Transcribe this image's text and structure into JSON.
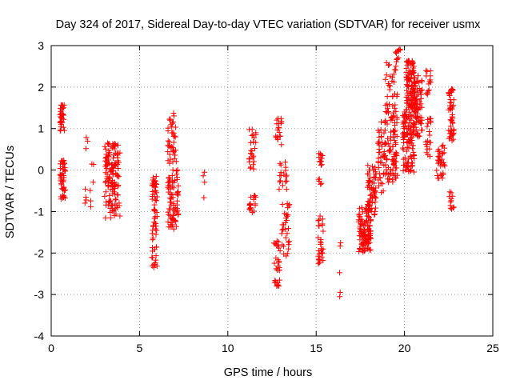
{
  "chart_data": {
    "type": "scatter",
    "title": "Day 324 of 2017, Sidereal Day-to-day VTEC variation (SDTVAR) for receiver usmx",
    "xlabel": "GPS time / hours",
    "ylabel": "SDTVAR / TECUs",
    "xlim": [
      0,
      25
    ],
    "ylim": [
      -4,
      3
    ],
    "xticks": [
      "0",
      "5",
      "10",
      "15",
      "20",
      "25"
    ],
    "yticks": [
      "-4",
      "-3",
      "-2",
      "-1",
      "0",
      "1",
      "2",
      "3"
    ],
    "grid": true,
    "marker": "+",
    "color": "#ff0000",
    "series": [
      {
        "name": "SDTVAR",
        "clusters": [
          {
            "x": [
              0.5,
              0.75
            ],
            "y": [
              0.9,
              1.6
            ],
            "n": 30
          },
          {
            "x": [
              0.5,
              0.8
            ],
            "y": [
              -0.7,
              0.25
            ],
            "n": 45
          },
          {
            "x": [
              1.9,
              2.1
            ],
            "y": [
              0.3,
              0.85
            ],
            "n": 3
          },
          {
            "x": [
              1.9,
              2.1
            ],
            "y": [
              -0.8,
              -0.4
            ],
            "n": 4
          },
          {
            "x": [
              2.2,
              2.4
            ],
            "y": [
              -0.9,
              0.2
            ],
            "n": 6
          },
          {
            "x": [
              3.0,
              3.9
            ],
            "y": [
              -0.4,
              0.65
            ],
            "n": 90
          },
          {
            "x": [
              3.0,
              3.9
            ],
            "y": [
              -1.2,
              -0.3
            ],
            "n": 45
          },
          {
            "x": [
              5.7,
              6.0
            ],
            "y": [
              -2.35,
              -0.1
            ],
            "n": 65
          },
          {
            "x": [
              6.6,
              7.1
            ],
            "y": [
              0.1,
              1.45
            ],
            "n": 40
          },
          {
            "x": [
              6.6,
              7.2
            ],
            "y": [
              -1.45,
              0.0
            ],
            "n": 80
          },
          {
            "x": [
              8.6,
              8.7
            ],
            "y": [
              -0.75,
              0.0
            ],
            "n": 4
          },
          {
            "x": [
              11.2,
              11.6
            ],
            "y": [
              0.0,
              1.1
            ],
            "n": 25
          },
          {
            "x": [
              11.2,
              11.6
            ],
            "y": [
              -1.05,
              -0.6
            ],
            "n": 18
          },
          {
            "x": [
              12.6,
              13.0
            ],
            "y": [
              -2.8,
              -1.7
            ],
            "n": 30
          },
          {
            "x": [
              12.7,
              13.1
            ],
            "y": [
              0.6,
              1.25
            ],
            "n": 20
          },
          {
            "x": [
              12.9,
              13.4
            ],
            "y": [
              -0.5,
              0.3
            ],
            "n": 18
          },
          {
            "x": [
              13.0,
              13.5
            ],
            "y": [
              -2.1,
              -0.8
            ],
            "n": 30
          },
          {
            "x": [
              15.1,
              15.4
            ],
            "y": [
              0.1,
              0.45
            ],
            "n": 12
          },
          {
            "x": [
              15.1,
              15.4
            ],
            "y": [
              -2.3,
              -1.1
            ],
            "n": 30
          },
          {
            "x": [
              15.1,
              15.3
            ],
            "y": [
              -0.5,
              -0.2
            ],
            "n": 5
          },
          {
            "x": [
              16.3,
              16.4
            ],
            "y": [
              -3.35,
              -1.2
            ],
            "n": 5
          },
          {
            "x": [
              17.4,
              18.1
            ],
            "y": [
              -2.0,
              -0.9
            ],
            "n": 110
          },
          {
            "x": [
              17.9,
              18.4
            ],
            "y": [
              -1.1,
              0.15
            ],
            "n": 70
          },
          {
            "x": [
              18.5,
              18.9
            ],
            "y": [
              -0.6,
              1.3
            ],
            "n": 45
          },
          {
            "x": [
              18.9,
              19.6
            ],
            "y": [
              -0.3,
              2.75
            ],
            "n": 120
          },
          {
            "x": [
              19.5,
              19.8
            ],
            "y": [
              2.5,
              2.95
            ],
            "n": 10
          },
          {
            "x": [
              19.9,
              20.6
            ],
            "y": [
              -0.05,
              1.6
            ],
            "n": 120
          },
          {
            "x": [
              20.1,
              20.6
            ],
            "y": [
              1.5,
              2.65
            ],
            "n": 90
          },
          {
            "x": [
              20.5,
              21.0
            ],
            "y": [
              0.8,
              2.3
            ],
            "n": 80
          },
          {
            "x": [
              21.2,
              21.5
            ],
            "y": [
              1.8,
              2.45
            ],
            "n": 15
          },
          {
            "x": [
              21.2,
              21.5
            ],
            "y": [
              0.3,
              1.4
            ],
            "n": 20
          },
          {
            "x": [
              21.8,
              22.3
            ],
            "y": [
              -0.2,
              0.6
            ],
            "n": 35
          },
          {
            "x": [
              22.5,
              22.8
            ],
            "y": [
              0.7,
              2.0
            ],
            "n": 50
          },
          {
            "x": [
              22.5,
              22.8
            ],
            "y": [
              -0.95,
              -0.5
            ],
            "n": 12
          }
        ]
      }
    ]
  }
}
